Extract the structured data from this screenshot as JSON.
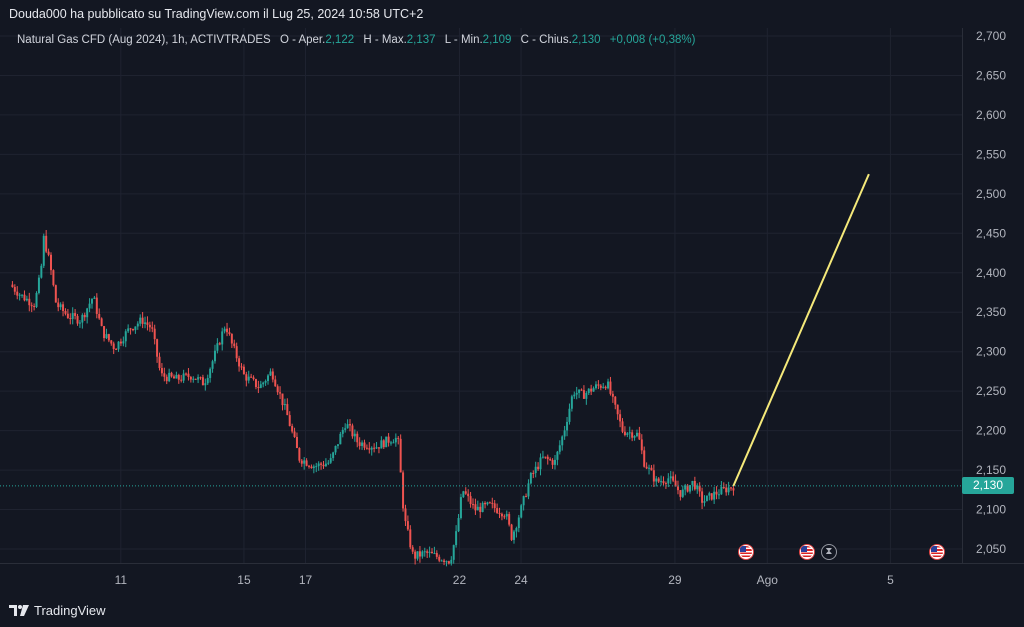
{
  "header": {
    "published_by": "Douda000 ha pubblicato su TradingView.com il Lug 25, 2024 10:58 UTC+2"
  },
  "legend": {
    "symbol": "Natural Gas CFD (Aug 2024), 1h, ACTIVTRADES",
    "open_label": "O - Aper.",
    "open": "2,122",
    "high_label": "H - Max.",
    "high": "2,137",
    "low_label": "L - Min.",
    "low": "2,109",
    "close_label": "C - Chius.",
    "close": "2,130",
    "change": "+0,008 (+0,38%)"
  },
  "price_tag": "2,130",
  "footer": {
    "brand": "TradingView"
  },
  "colors": {
    "up": "#26a69a",
    "down": "#ef5350",
    "projection": "#f5e97a",
    "background": "#131722"
  },
  "chart_data": {
    "type": "candlestick",
    "ylim": [
      2.02,
      2.71
    ],
    "y_ticks": [
      "2,700",
      "2,650",
      "2,600",
      "2,550",
      "2,500",
      "2,450",
      "2,400",
      "2,350",
      "2,300",
      "2,250",
      "2,200",
      "2,150",
      "2,100",
      "2,050"
    ],
    "x_ticks": [
      {
        "label": "11",
        "day": 11
      },
      {
        "label": "15",
        "day": 15
      },
      {
        "label": "17",
        "day": 17
      },
      {
        "label": "22",
        "day": 22
      },
      {
        "label": "24",
        "day": 24
      },
      {
        "label": "29",
        "day": 29
      },
      {
        "label": "Ago",
        "day": 32
      },
      {
        "label": "5",
        "day": 36
      }
    ],
    "x_range_days": [
      7.4,
      38.0
    ],
    "current_price": 2.13,
    "price_path": [
      [
        7.4,
        2.385
      ],
      [
        7.8,
        2.37
      ],
      [
        8.2,
        2.36
      ],
      [
        8.4,
        2.4
      ],
      [
        8.5,
        2.445
      ],
      [
        8.7,
        2.41
      ],
      [
        8.9,
        2.36
      ],
      [
        9.3,
        2.345
      ],
      [
        9.7,
        2.34
      ],
      [
        10.1,
        2.37
      ],
      [
        10.4,
        2.325
      ],
      [
        10.8,
        2.305
      ],
      [
        11.3,
        2.33
      ],
      [
        11.7,
        2.34
      ],
      [
        12.0,
        2.33
      ],
      [
        12.3,
        2.27
      ],
      [
        12.8,
        2.265
      ],
      [
        13.3,
        2.27
      ],
      [
        13.7,
        2.26
      ],
      [
        14.0,
        2.29
      ],
      [
        14.4,
        2.335
      ],
      [
        14.6,
        2.31
      ],
      [
        15.0,
        2.27
      ],
      [
        15.5,
        2.255
      ],
      [
        15.9,
        2.275
      ],
      [
        16.4,
        2.22
      ],
      [
        16.8,
        2.165
      ],
      [
        17.3,
        2.155
      ],
      [
        17.8,
        2.16
      ],
      [
        18.3,
        2.21
      ],
      [
        18.7,
        2.185
      ],
      [
        19.3,
        2.18
      ],
      [
        19.8,
        2.19
      ],
      [
        20.0,
        2.19
      ],
      [
        20.2,
        2.09
      ],
      [
        20.5,
        2.04
      ],
      [
        20.9,
        2.045
      ],
      [
        21.3,
        2.04
      ],
      [
        21.7,
        2.035
      ],
      [
        21.9,
        2.07
      ],
      [
        22.1,
        2.125
      ],
      [
        22.5,
        2.1
      ],
      [
        23.0,
        2.105
      ],
      [
        23.5,
        2.095
      ],
      [
        23.7,
        2.065
      ],
      [
        24.0,
        2.1
      ],
      [
        24.3,
        2.14
      ],
      [
        24.7,
        2.165
      ],
      [
        25.1,
        2.16
      ],
      [
        25.4,
        2.2
      ],
      [
        25.7,
        2.25
      ],
      [
        26.0,
        2.245
      ],
      [
        26.4,
        2.255
      ],
      [
        26.8,
        2.26
      ],
      [
        27.0,
        2.235
      ],
      [
        27.3,
        2.2
      ],
      [
        27.8,
        2.195
      ],
      [
        28.0,
        2.16
      ],
      [
        28.4,
        2.135
      ],
      [
        28.8,
        2.14
      ],
      [
        29.2,
        2.12
      ],
      [
        29.6,
        2.135
      ],
      [
        29.9,
        2.11
      ],
      [
        30.3,
        2.12
      ],
      [
        30.6,
        2.125
      ],
      [
        30.9,
        2.13
      ]
    ],
    "projection": {
      "from": [
        30.9,
        2.13
      ],
      "to": [
        35.3,
        2.525
      ]
    },
    "events": [
      {
        "type": "us-flag",
        "day": 31.3
      },
      {
        "type": "us-flag",
        "day": 33.3
      },
      {
        "type": "hourglass",
        "day": 34.0
      },
      {
        "type": "us-flag",
        "day": 37.5
      }
    ]
  }
}
